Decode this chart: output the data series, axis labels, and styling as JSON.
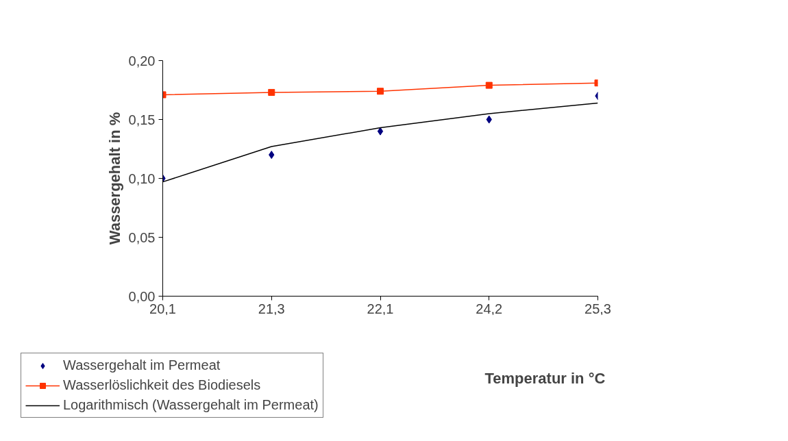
{
  "chart_data": {
    "type": "line",
    "xlabel": "Temperatur in °C",
    "ylabel": "Wassergehalt in %",
    "categories": [
      "20,1",
      "21,3",
      "22,1",
      "24,2",
      "25,3"
    ],
    "ylim": [
      0,
      0.2
    ],
    "yticks": [
      {
        "value": 0,
        "label": "0,00"
      },
      {
        "value": 0.05,
        "label": "0,05"
      },
      {
        "value": 0.1,
        "label": "0,10"
      },
      {
        "value": 0.15,
        "label": "0,15"
      },
      {
        "value": 0.2,
        "label": "0,20"
      }
    ],
    "grid": false,
    "legend": "bottom left",
    "series": [
      {
        "name": "Wassergehalt im Permeat",
        "type": "scatter",
        "marker": "diamond",
        "color": "#000080",
        "values": [
          0.1,
          0.12,
          0.14,
          0.15,
          0.17
        ]
      },
      {
        "name": "Wasserlöslichkeit des Biodiesels",
        "marker": "square",
        "color": "#ff3300",
        "values": [
          0.171,
          0.173,
          0.174,
          0.179,
          0.181
        ]
      },
      {
        "name": "Logarithmisch (Wassergehalt im Permeat)",
        "marker": "none",
        "color": "#000000",
        "values": [
          0.097,
          0.127,
          0.143,
          0.155,
          0.164
        ]
      }
    ]
  }
}
